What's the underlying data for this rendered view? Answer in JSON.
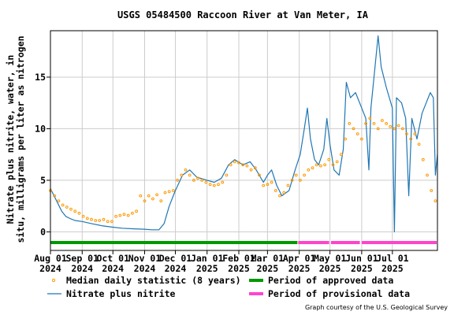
{
  "colors": {
    "series": "#1f77b4",
    "median": "#ff9900",
    "approved": "#009900",
    "provisional": "#ff44cc",
    "frame": "#000000"
  },
  "chart_data": {
    "type": "line",
    "title": "USGS 05484500 Raccoon River at Van Meter, IA",
    "ylabel": "Nitrate plus nitrite, water, in situ, milligrams per liter as nitrogen",
    "xlabel": "",
    "x_range": [
      "2024-08-01",
      "2025-08-14"
    ],
    "ylim": [
      -1.8,
      19.5
    ],
    "yticks": [
      0,
      5,
      10,
      15
    ],
    "xticks": [
      {
        "date": "2024-08-01",
        "label1": "Aug 01",
        "label2": "2024"
      },
      {
        "date": "2024-09-01",
        "label1": "Sep 01",
        "label2": "2024"
      },
      {
        "date": "2024-10-01",
        "label1": "Oct 01",
        "label2": "2024"
      },
      {
        "date": "2024-11-01",
        "label1": "Nov 01",
        "label2": "2024"
      },
      {
        "date": "2024-12-01",
        "label1": "Dec 01",
        "label2": "2024"
      },
      {
        "date": "2025-01-01",
        "label1": "Jan 01",
        "label2": "2025"
      },
      {
        "date": "2025-02-01",
        "label1": "Feb 01",
        "label2": "2025"
      },
      {
        "date": "2025-03-01",
        "label1": "Mar 01",
        "label2": "2025"
      },
      {
        "date": "2025-04-01",
        "label1": "Apr 01",
        "label2": "2025"
      },
      {
        "date": "2025-05-01",
        "label1": "May 01",
        "label2": "2025"
      },
      {
        "date": "2025-06-01",
        "label1": "Jun 01",
        "label2": "2025"
      },
      {
        "date": "2025-07-01",
        "label1": "Jul 01",
        "label2": "2025"
      }
    ],
    "grid": true,
    "legend_position": "bottom",
    "legend": {
      "median": "Median daily statistic (8 years)",
      "series": "Nitrate plus nitrite",
      "approved": "Period of approved data",
      "provisional": "Period of provisional data"
    },
    "series": [
      {
        "name": "Nitrate plus nitrite",
        "style": "line",
        "points": [
          [
            "2024-08-01",
            4.2
          ],
          [
            "2024-08-04",
            3.6
          ],
          [
            "2024-08-08",
            2.8
          ],
          [
            "2024-08-12",
            2.0
          ],
          [
            "2024-08-16",
            1.5
          ],
          [
            "2024-08-20",
            1.3
          ],
          [
            "2024-08-25",
            1.1
          ],
          [
            "2024-09-01",
            1.0
          ],
          [
            "2024-09-10",
            0.8
          ],
          [
            "2024-09-20",
            0.6
          ],
          [
            "2024-10-01",
            0.45
          ],
          [
            "2024-10-10",
            0.35
          ],
          [
            "2024-10-20",
            0.3
          ],
          [
            "2024-11-01",
            0.25
          ],
          [
            "2024-11-08",
            0.2
          ],
          [
            "2024-11-15",
            0.2
          ],
          [
            "2024-11-20",
            0.8
          ],
          [
            "2024-11-25",
            2.5
          ],
          [
            "2024-12-01",
            4.0
          ],
          [
            "2024-12-08",
            5.5
          ],
          [
            "2024-12-15",
            6.0
          ],
          [
            "2024-12-22",
            5.3
          ],
          [
            "2025-01-01",
            5.0
          ],
          [
            "2025-01-08",
            4.8
          ],
          [
            "2025-01-15",
            5.2
          ],
          [
            "2025-01-22",
            6.5
          ],
          [
            "2025-01-28",
            7.0
          ],
          [
            "2025-02-05",
            6.5
          ],
          [
            "2025-02-12",
            6.8
          ],
          [
            "2025-02-18",
            6.0
          ],
          [
            "2025-02-25",
            4.8
          ],
          [
            "2025-03-01",
            5.5
          ],
          [
            "2025-03-05",
            6.0
          ],
          [
            "2025-03-10",
            4.5
          ],
          [
            "2025-03-15",
            3.5
          ],
          [
            "2025-03-22",
            4.0
          ],
          [
            "2025-03-28",
            6.0
          ],
          [
            "2025-04-02",
            7.5
          ],
          [
            "2025-04-06",
            10.0
          ],
          [
            "2025-04-09",
            12.0
          ],
          [
            "2025-04-12",
            9.0
          ],
          [
            "2025-04-16",
            7.0
          ],
          [
            "2025-04-20",
            6.5
          ],
          [
            "2025-04-25",
            8.0
          ],
          [
            "2025-04-28",
            11.0
          ],
          [
            "2025-05-01",
            8.5
          ],
          [
            "2025-05-05",
            6.0
          ],
          [
            "2025-05-10",
            5.5
          ],
          [
            "2025-05-14",
            8.0
          ],
          [
            "2025-05-17",
            14.5
          ],
          [
            "2025-05-21",
            13.0
          ],
          [
            "2025-05-26",
            13.5
          ],
          [
            "2025-06-01",
            12.0
          ],
          [
            "2025-06-05",
            11.0
          ],
          [
            "2025-06-08",
            6.0
          ],
          [
            "2025-06-10",
            12.0
          ],
          [
            "2025-06-14",
            16.0
          ],
          [
            "2025-06-17",
            19.0
          ],
          [
            "2025-06-20",
            16.0
          ],
          [
            "2025-06-25",
            14.0
          ],
          [
            "2025-07-01",
            12.0
          ],
          [
            "2025-07-03",
            0.0
          ],
          [
            "2025-07-05",
            13.0
          ],
          [
            "2025-07-10",
            12.5
          ],
          [
            "2025-07-14",
            11.0
          ],
          [
            "2025-07-17",
            3.5
          ],
          [
            "2025-07-20",
            11.0
          ],
          [
            "2025-07-25",
            9.0
          ],
          [
            "2025-07-30",
            11.5
          ],
          [
            "2025-08-03",
            12.5
          ],
          [
            "2025-08-07",
            13.5
          ],
          [
            "2025-08-10",
            13.0
          ],
          [
            "2025-08-12",
            5.5
          ],
          [
            "2025-08-14",
            7.5
          ]
        ]
      },
      {
        "name": "Median daily statistic (8 years)",
        "style": "points",
        "points": [
          [
            "2024-08-01",
            4.0
          ],
          [
            "2024-08-05",
            3.5
          ],
          [
            "2024-08-09",
            3.0
          ],
          [
            "2024-08-13",
            2.6
          ],
          [
            "2024-08-17",
            2.4
          ],
          [
            "2024-08-21",
            2.2
          ],
          [
            "2024-08-25",
            2.0
          ],
          [
            "2024-08-29",
            1.8
          ],
          [
            "2024-09-02",
            1.5
          ],
          [
            "2024-09-06",
            1.3
          ],
          [
            "2024-09-10",
            1.2
          ],
          [
            "2024-09-14",
            1.1
          ],
          [
            "2024-09-18",
            1.1
          ],
          [
            "2024-09-22",
            1.2
          ],
          [
            "2024-09-26",
            1.0
          ],
          [
            "2024-09-30",
            1.0
          ],
          [
            "2024-10-04",
            1.5
          ],
          [
            "2024-10-08",
            1.6
          ],
          [
            "2024-10-12",
            1.7
          ],
          [
            "2024-10-16",
            1.6
          ],
          [
            "2024-10-20",
            1.8
          ],
          [
            "2024-10-24",
            2.0
          ],
          [
            "2024-10-28",
            3.5
          ],
          [
            "2024-11-01",
            3.0
          ],
          [
            "2024-11-05",
            3.5
          ],
          [
            "2024-11-09",
            3.2
          ],
          [
            "2024-11-13",
            3.6
          ],
          [
            "2024-11-17",
            3.0
          ],
          [
            "2024-11-21",
            3.8
          ],
          [
            "2024-11-25",
            3.9
          ],
          [
            "2024-11-29",
            4.0
          ],
          [
            "2024-12-03",
            5.0
          ],
          [
            "2024-12-07",
            5.5
          ],
          [
            "2024-12-11",
            6.0
          ],
          [
            "2024-12-15",
            5.5
          ],
          [
            "2024-12-19",
            5.0
          ],
          [
            "2024-12-23",
            5.2
          ],
          [
            "2024-12-27",
            5.0
          ],
          [
            "2024-12-31",
            4.8
          ],
          [
            "2025-01-04",
            4.6
          ],
          [
            "2025-01-08",
            4.5
          ],
          [
            "2025-01-12",
            4.6
          ],
          [
            "2025-01-16",
            4.8
          ],
          [
            "2025-01-20",
            5.5
          ],
          [
            "2025-01-24",
            6.5
          ],
          [
            "2025-01-28",
            6.8
          ],
          [
            "2025-02-01",
            6.7
          ],
          [
            "2025-02-05",
            6.5
          ],
          [
            "2025-02-09",
            6.4
          ],
          [
            "2025-02-13",
            6.0
          ],
          [
            "2025-02-17",
            6.2
          ],
          [
            "2025-02-21",
            5.5
          ],
          [
            "2025-02-25",
            4.5
          ],
          [
            "2025-03-01",
            4.6
          ],
          [
            "2025-03-05",
            4.8
          ],
          [
            "2025-03-09",
            4.0
          ],
          [
            "2025-03-13",
            3.5
          ],
          [
            "2025-03-17",
            3.8
          ],
          [
            "2025-03-21",
            4.5
          ],
          [
            "2025-03-25",
            5.0
          ],
          [
            "2025-03-29",
            5.5
          ],
          [
            "2025-04-02",
            5.0
          ],
          [
            "2025-04-06",
            5.5
          ],
          [
            "2025-04-10",
            6.0
          ],
          [
            "2025-04-14",
            6.2
          ],
          [
            "2025-04-18",
            6.5
          ],
          [
            "2025-04-22",
            6.4
          ],
          [
            "2025-04-26",
            6.5
          ],
          [
            "2025-04-30",
            7.0
          ],
          [
            "2025-05-04",
            6.5
          ],
          [
            "2025-05-08",
            6.8
          ],
          [
            "2025-05-12",
            7.5
          ],
          [
            "2025-05-16",
            9.0
          ],
          [
            "2025-05-20",
            10.5
          ],
          [
            "2025-05-24",
            10.0
          ],
          [
            "2025-05-28",
            9.5
          ],
          [
            "2025-06-01",
            9.0
          ],
          [
            "2025-06-05",
            10.5
          ],
          [
            "2025-06-09",
            11.0
          ],
          [
            "2025-06-13",
            10.5
          ],
          [
            "2025-06-17",
            10.0
          ],
          [
            "2025-06-21",
            10.8
          ],
          [
            "2025-06-25",
            10.5
          ],
          [
            "2025-06-29",
            10.2
          ],
          [
            "2025-07-03",
            10.0
          ],
          [
            "2025-07-07",
            10.3
          ],
          [
            "2025-07-11",
            10.0
          ],
          [
            "2025-07-15",
            9.5
          ],
          [
            "2025-07-19",
            9.0
          ],
          [
            "2025-07-23",
            9.5
          ],
          [
            "2025-07-27",
            8.5
          ],
          [
            "2025-07-31",
            7.0
          ],
          [
            "2025-08-04",
            5.5
          ],
          [
            "2025-08-08",
            4.0
          ],
          [
            "2025-08-12",
            3.0
          ]
        ]
      }
    ],
    "periods": [
      {
        "type": "approved",
        "start": "2024-08-01",
        "end": "2025-03-31"
      },
      {
        "type": "provisional",
        "start": "2025-03-31",
        "end": "2025-05-01"
      },
      {
        "type": "provisional",
        "start": "2025-05-02",
        "end": "2025-05-31"
      },
      {
        "type": "provisional",
        "start": "2025-06-01",
        "end": "2025-08-14"
      }
    ]
  },
  "footer": {
    "credit": "Graph courtesy of the U.S. Geological Survey"
  }
}
